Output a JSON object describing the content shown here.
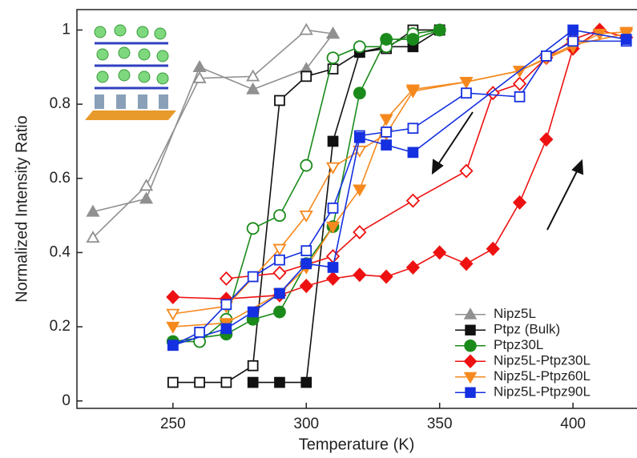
{
  "chart_data": {
    "type": "line",
    "xlabel": "Temperature (K)",
    "ylabel": "Normalized Intensity Ratio",
    "xlim": [
      214,
      424
    ],
    "ylim": [
      -0.02,
      1.055
    ],
    "xticks": [
      250,
      300,
      350,
      400
    ],
    "yticks": [
      0,
      0.2,
      0.4,
      0.6,
      0.8,
      1
    ],
    "legend": "lower right",
    "series": [
      {
        "name": "Nipz5L",
        "color": "#909090",
        "marker": "triangle",
        "heating": {
          "x": [
            220,
            240,
            260,
            280,
            300,
            310
          ],
          "values": [
            0.51,
            0.545,
            0.9,
            0.84,
            0.895,
            0.99
          ]
        },
        "cooling": {
          "x": [
            220,
            240,
            260,
            280,
            300,
            310
          ],
          "values": [
            0.44,
            0.58,
            0.87,
            0.875,
            1.0,
            0.99
          ]
        }
      },
      {
        "name": "Ptpz (Bulk)",
        "color": "#111111",
        "marker": "square",
        "heating": {
          "x": [
            280,
            290,
            300,
            310,
            320,
            330,
            340,
            350
          ],
          "values": [
            0.05,
            0.05,
            0.05,
            0.7,
            0.94,
            0.955,
            0.955,
            1.0
          ]
        },
        "cooling": {
          "x": [
            250,
            260,
            270,
            280,
            290,
            300,
            310,
            320,
            330,
            340,
            350
          ],
          "values": [
            0.05,
            0.05,
            0.05,
            0.095,
            0.81,
            0.875,
            0.895,
            0.94,
            0.95,
            1.0,
            1.0
          ]
        }
      },
      {
        "name": "Ptpz30L",
        "color": "#1a8a1a",
        "marker": "circle",
        "heating": {
          "x": [
            250,
            270,
            280,
            290,
            300,
            310,
            320,
            330,
            340,
            350
          ],
          "values": [
            0.16,
            0.18,
            0.22,
            0.24,
            0.37,
            0.47,
            0.83,
            0.975,
            0.975,
            1.0
          ]
        },
        "cooling": {
          "x": [
            250,
            260,
            270,
            280,
            290,
            300,
            310,
            320,
            330,
            340,
            350
          ],
          "values": [
            0.16,
            0.16,
            0.22,
            0.465,
            0.5,
            0.635,
            0.925,
            0.955,
            0.955,
            0.99,
            1.0
          ]
        }
      },
      {
        "name": "Nipz5L-Ptpz30L",
        "color": "#ee1111",
        "marker": "diamond",
        "heating": {
          "x": [
            250,
            270,
            290,
            300,
            310,
            320,
            330,
            340,
            350,
            360,
            370,
            380,
            390,
            400,
            410,
            420
          ],
          "values": [
            0.28,
            0.275,
            0.285,
            0.31,
            0.33,
            0.34,
            0.335,
            0.36,
            0.4,
            0.37,
            0.41,
            0.535,
            0.705,
            0.95,
            1.0,
            0.98
          ]
        },
        "cooling": {
          "x": [
            270,
            290,
            310,
            320,
            340,
            360,
            370,
            380,
            390,
            400,
            410
          ],
          "values": [
            0.33,
            0.345,
            0.39,
            0.455,
            0.54,
            0.62,
            0.83,
            0.855,
            0.925,
            0.975,
            1.0
          ]
        }
      },
      {
        "name": "Nipz5L-Ptpz60L",
        "color": "#f5891e",
        "marker": "down-triangle",
        "heating": {
          "x": [
            250,
            270,
            290,
            300,
            310,
            320,
            330,
            340,
            360,
            380,
            400,
            410,
            420
          ],
          "values": [
            0.2,
            0.21,
            0.29,
            0.36,
            0.47,
            0.57,
            0.76,
            0.84,
            0.86,
            0.89,
            0.955,
            0.99,
            0.995
          ]
        },
        "cooling": {
          "x": [
            250,
            270,
            290,
            300,
            310,
            320,
            330,
            340,
            360,
            380,
            390,
            400,
            420
          ],
          "values": [
            0.235,
            0.255,
            0.41,
            0.5,
            0.63,
            0.675,
            0.72,
            0.835,
            0.86,
            0.89,
            0.925,
            0.96,
            0.99
          ]
        }
      },
      {
        "name": "Nipz5L-Ptpz90L",
        "color": "#1530e0",
        "marker": "square",
        "heating": {
          "x": [
            250,
            270,
            280,
            290,
            300,
            310,
            320,
            330,
            340,
            400,
            420
          ],
          "values": [
            0.15,
            0.195,
            0.24,
            0.29,
            0.37,
            0.36,
            0.71,
            0.69,
            0.67,
            1.0,
            0.975
          ]
        },
        "cooling": {
          "x": [
            250,
            260,
            270,
            280,
            290,
            300,
            310,
            320,
            330,
            340,
            360,
            380,
            390,
            400,
            420
          ],
          "values": [
            0.15,
            0.185,
            0.26,
            0.335,
            0.38,
            0.405,
            0.52,
            0.715,
            0.725,
            0.735,
            0.83,
            0.82,
            0.93,
            0.97,
            0.97
          ]
        }
      }
    ]
  }
}
